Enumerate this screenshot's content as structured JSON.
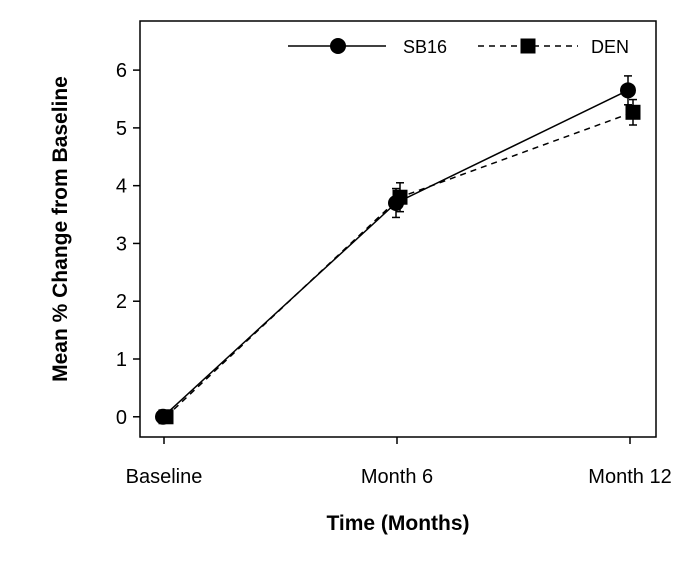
{
  "chart_data": {
    "type": "line",
    "title": "",
    "xlabel": "Time (Months)",
    "ylabel": "Mean % Change from Baseline",
    "categories": [
      "Baseline",
      "Month 6",
      "Month 12"
    ],
    "ylim": [
      -0.35,
      6.85
    ],
    "yticks": [
      0,
      1,
      2,
      3,
      4,
      5,
      6
    ],
    "legend_position": "top-right",
    "series": [
      {
        "name": "SB16",
        "marker": "circle",
        "line_style": "solid",
        "values": [
          0,
          3.7,
          5.65
        ],
        "error": [
          0,
          0.25,
          0.25
        ]
      },
      {
        "name": "DEN",
        "marker": "square",
        "line_style": "dashed",
        "values": [
          0,
          3.8,
          5.27
        ],
        "error": [
          0,
          0.25,
          0.22
        ]
      }
    ]
  }
}
